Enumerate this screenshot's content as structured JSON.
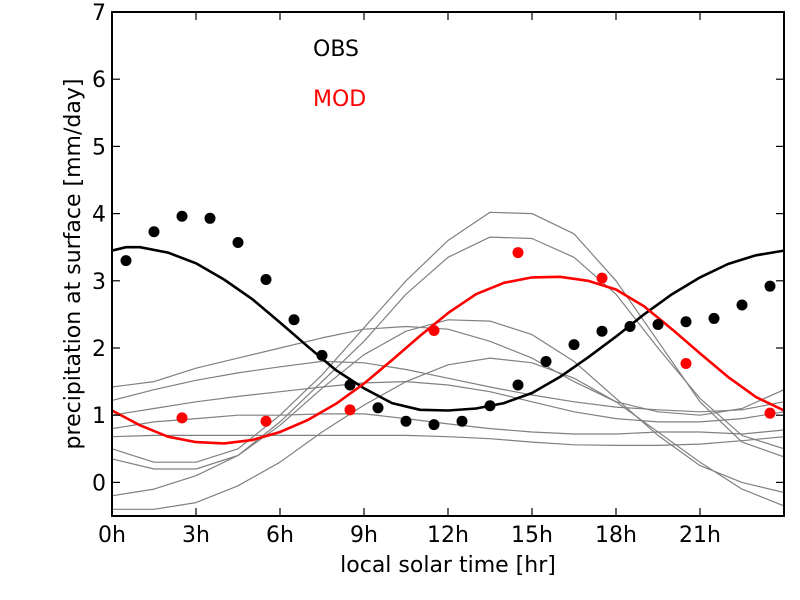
{
  "chart_data": {
    "type": "line",
    "xlabel": "local solar time [hr]",
    "ylabel": "precipitation at surface [mm/day]",
    "xlim": [
      0,
      24
    ],
    "ylim": [
      -0.5,
      7
    ],
    "x_ticks": [
      0,
      3,
      6,
      9,
      12,
      15,
      18,
      21
    ],
    "x_tick_labels": [
      "0h",
      "3h",
      "6h",
      "9h",
      "12h",
      "15h",
      "18h",
      "21h"
    ],
    "y_ticks": [
      0,
      1,
      2,
      3,
      4,
      5,
      6,
      7
    ],
    "y_tick_labels": [
      "0",
      "1",
      "2",
      "3",
      "4",
      "5",
      "6",
      "7"
    ],
    "legend": {
      "placement": "top-center",
      "entries": [
        {
          "label": "OBS",
          "color": "#000000"
        },
        {
          "label": "MOD",
          "color": "#ff0000"
        }
      ]
    },
    "series": [
      {
        "color": "#000000",
        "style": "line-thick",
        "x": [
          0,
          0.5,
          1,
          2,
          3,
          4,
          5,
          6,
          7,
          8,
          9,
          10,
          11,
          12,
          13,
          14,
          15,
          16,
          17,
          18,
          19,
          20,
          21,
          22,
          23,
          24
        ],
        "y": [
          3.45,
          3.5,
          3.5,
          3.42,
          3.26,
          3.02,
          2.73,
          2.38,
          2.02,
          1.67,
          1.4,
          1.18,
          1.08,
          1.07,
          1.1,
          1.18,
          1.33,
          1.57,
          1.86,
          2.17,
          2.5,
          2.8,
          3.05,
          3.25,
          3.38,
          3.45
        ]
      },
      {
        "color": "#000000",
        "style": "dots",
        "x": [
          0.5,
          1.5,
          2.5,
          3.5,
          4.5,
          5.5,
          6.5,
          7.5,
          8.5,
          9.5,
          10.5,
          11.5,
          12.5,
          13.5,
          14.5,
          15.5,
          16.5,
          17.5,
          18.5,
          19.5,
          20.5,
          21.5,
          22.5,
          23.5
        ],
        "y": [
          3.3,
          3.73,
          3.96,
          3.93,
          3.57,
          3.02,
          2.42,
          1.89,
          1.45,
          1.11,
          0.91,
          0.86,
          0.91,
          1.14,
          1.45,
          1.8,
          2.05,
          2.25,
          2.32,
          2.35,
          2.39,
          2.44,
          2.64,
          2.92
        ]
      },
      {
        "color": "#ff0000",
        "style": "line-thick",
        "x": [
          0,
          1,
          2,
          3,
          4,
          5,
          6,
          7,
          8,
          9,
          10,
          11,
          12,
          13,
          14,
          15,
          16,
          17,
          18,
          19,
          20,
          21,
          22,
          23,
          24
        ],
        "y": [
          1.07,
          0.85,
          0.68,
          0.6,
          0.58,
          0.63,
          0.75,
          0.93,
          1.17,
          1.47,
          1.82,
          2.18,
          2.52,
          2.8,
          2.97,
          3.05,
          3.06,
          3.0,
          2.87,
          2.62,
          2.28,
          1.92,
          1.57,
          1.27,
          1.07
        ]
      },
      {
        "color": "#ff0000",
        "style": "dots",
        "x": [
          2.5,
          5.5,
          8.5,
          11.5,
          14.5,
          17.5,
          20.5,
          23.5
        ],
        "y": [
          0.96,
          0.91,
          1.08,
          2.26,
          3.42,
          3.04,
          1.77,
          1.03
        ]
      },
      {
        "color": "#808080",
        "style": "line-thin",
        "x": [
          0,
          1.5,
          3,
          4.5,
          6,
          7.5,
          9,
          10.5,
          12,
          13.5,
          15,
          16.5,
          18,
          19.5,
          21,
          22.5,
          24
        ],
        "y": [
          0.5,
          0.3,
          0.3,
          0.5,
          1.0,
          1.6,
          2.3,
          3.0,
          3.6,
          4.02,
          4.0,
          3.7,
          3.0,
          2.1,
          1.2,
          0.6,
          0.38
        ]
      },
      {
        "color": "#808080",
        "style": "line-thin",
        "x": [
          0,
          1.5,
          3,
          4.5,
          6,
          7.5,
          9,
          10.5,
          12,
          13.5,
          15,
          16.5,
          18,
          19.5,
          21,
          22.5,
          24
        ],
        "y": [
          0.35,
          0.2,
          0.2,
          0.4,
          0.9,
          1.5,
          2.1,
          2.8,
          3.35,
          3.65,
          3.63,
          3.35,
          2.8,
          2.0,
          1.25,
          0.7,
          0.5
        ]
      },
      {
        "color": "#808080",
        "style": "line-thin",
        "x": [
          0,
          1.5,
          3,
          4.5,
          6,
          7.5,
          9,
          10.5,
          12,
          13.5,
          15,
          16.5,
          18,
          19.5,
          21,
          22.5,
          24
        ],
        "y": [
          -0.4,
          -0.4,
          -0.3,
          -0.05,
          0.3,
          0.75,
          1.15,
          1.5,
          1.75,
          1.85,
          1.78,
          1.55,
          1.2,
          0.75,
          0.3,
          -0.1,
          -0.35
        ]
      },
      {
        "color": "#808080",
        "style": "line-thin",
        "x": [
          0,
          1.5,
          3,
          4.5,
          6,
          7.5,
          9,
          10.5,
          12,
          13.5,
          15,
          16.5,
          18,
          19.5,
          21,
          22.5,
          24
        ],
        "y": [
          -0.2,
          -0.1,
          0.1,
          0.4,
          0.85,
          1.4,
          1.9,
          2.25,
          2.42,
          2.4,
          2.2,
          1.8,
          1.25,
          0.7,
          0.25,
          0.0,
          -0.15
        ]
      },
      {
        "color": "#808080",
        "style": "line-thin",
        "x": [
          0,
          1.5,
          3,
          4.5,
          6,
          7.5,
          9,
          10.5,
          12,
          13.5,
          15,
          16.5,
          18,
          19.5,
          21,
          22.5,
          24
        ],
        "y": [
          1.42,
          1.5,
          1.7,
          1.85,
          2.0,
          2.15,
          2.28,
          2.32,
          2.28,
          2.1,
          1.85,
          1.5,
          1.2,
          1.05,
          1.0,
          1.1,
          1.38
        ]
      },
      {
        "color": "#808080",
        "style": "line-thin",
        "x": [
          0,
          1.5,
          3,
          4.5,
          6,
          7.5,
          9,
          10.5,
          12,
          13.5,
          15,
          16.5,
          18,
          19.5,
          21,
          22.5,
          24
        ],
        "y": [
          1.22,
          1.38,
          1.52,
          1.63,
          1.72,
          1.8,
          1.78,
          1.68,
          1.55,
          1.42,
          1.3,
          1.2,
          1.12,
          1.08,
          1.05,
          1.08,
          1.2
        ]
      },
      {
        "color": "#808080",
        "style": "line-thin",
        "x": [
          0,
          1.5,
          3,
          4.5,
          6,
          7.5,
          9,
          10.5,
          12,
          13.5,
          15,
          16.5,
          18,
          19.5,
          21,
          22.5,
          24
        ],
        "y": [
          1.0,
          1.1,
          1.2,
          1.28,
          1.35,
          1.42,
          1.48,
          1.5,
          1.45,
          1.35,
          1.2,
          1.05,
          0.95,
          0.9,
          0.9,
          0.95,
          1.05
        ]
      },
      {
        "color": "#808080",
        "style": "line-thin",
        "x": [
          0,
          1.5,
          3,
          4.5,
          6,
          7.5,
          9,
          10.5,
          12,
          13.5,
          15,
          16.5,
          18,
          19.5,
          21,
          22.5,
          24
        ],
        "y": [
          0.8,
          0.9,
          0.95,
          1.0,
          1.0,
          1.02,
          1.02,
          0.95,
          0.87,
          0.8,
          0.75,
          0.72,
          0.72,
          0.75,
          0.75,
          0.72,
          0.78
        ]
      },
      {
        "color": "#808080",
        "style": "line-thin",
        "x": [
          0,
          1.5,
          3,
          4.5,
          6,
          7.5,
          9,
          10.5,
          12,
          13.5,
          15,
          16.5,
          18,
          19.5,
          21,
          22.5,
          24
        ],
        "y": [
          0.68,
          0.7,
          0.7,
          0.7,
          0.7,
          0.7,
          0.7,
          0.7,
          0.68,
          0.65,
          0.6,
          0.56,
          0.55,
          0.55,
          0.57,
          0.62,
          0.68
        ]
      }
    ]
  }
}
